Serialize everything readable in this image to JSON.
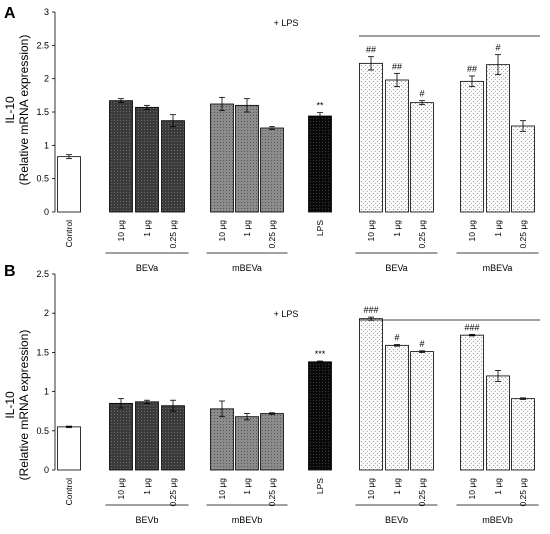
{
  "colors": {
    "white": "#ffffff",
    "dark": "#3a3a3a",
    "medium": "#8a8a8a",
    "black": "#111111",
    "dotted": "#f2f2f2"
  },
  "chart_data": [
    {
      "type": "bar",
      "panel": "A",
      "ylabel_line1": "IL-10",
      "ylabel_line2": "(Relative mRNA expression)",
      "ylim": [
        0,
        3
      ],
      "yticks": [
        "0",
        "0.5",
        "1",
        "1.5",
        "2",
        "2.5",
        "3"
      ],
      "lps_label": "+ LPS",
      "groups": [
        {
          "label": "BEVa",
          "start": 1,
          "end": 3
        },
        {
          "label": "mBEVa",
          "start": 4,
          "end": 6
        },
        {
          "label": "BEVa",
          "start": 8,
          "end": 10
        },
        {
          "label": "mBEVa",
          "start": 11,
          "end": 13
        }
      ],
      "bars": [
        {
          "category": "Control",
          "value": 0.83,
          "error": 0.03,
          "fill": "white",
          "sig": ""
        },
        {
          "category": "10 μg",
          "value": 1.67,
          "error": 0.03,
          "fill": "dark",
          "sig": ""
        },
        {
          "category": "1 μg",
          "value": 1.57,
          "error": 0.03,
          "fill": "dark",
          "sig": ""
        },
        {
          "category": "0.25 μg",
          "value": 1.37,
          "error": 0.09,
          "fill": "dark",
          "sig": ""
        },
        {
          "category": "10 μg",
          "value": 1.62,
          "error": 0.1,
          "fill": "medium",
          "sig": ""
        },
        {
          "category": "1 μg",
          "value": 1.6,
          "error": 0.1,
          "fill": "medium",
          "sig": ""
        },
        {
          "category": "0.25 μg",
          "value": 1.26,
          "error": 0.02,
          "fill": "medium",
          "sig": ""
        },
        {
          "category": "LPS",
          "value": 1.44,
          "error": 0.05,
          "fill": "black",
          "sig": "**"
        },
        {
          "category": "10 μg",
          "value": 2.23,
          "error": 0.1,
          "fill": "dotted",
          "sig": "##"
        },
        {
          "category": "1 μg",
          "value": 1.98,
          "error": 0.1,
          "fill": "dotted",
          "sig": "##"
        },
        {
          "category": "0.25 μg",
          "value": 1.64,
          "error": 0.03,
          "fill": "dotted",
          "sig": "#"
        },
        {
          "category": "10 μg",
          "value": 1.96,
          "error": 0.08,
          "fill": "dotted",
          "sig": "##"
        },
        {
          "category": "1 μg",
          "value": 2.21,
          "error": 0.15,
          "fill": "dotted",
          "sig": "#"
        },
        {
          "category": "0.25 μg",
          "value": 1.29,
          "error": 0.08,
          "fill": "dotted",
          "sig": ""
        }
      ]
    },
    {
      "type": "bar",
      "panel": "B",
      "ylabel_line1": "IL-10",
      "ylabel_line2": "(Relative mRNA expression)",
      "ylim": [
        0,
        2.5
      ],
      "yticks": [
        "0",
        "0.5",
        "1",
        "1.5",
        "2",
        "2.5"
      ],
      "lps_label": "+ LPS",
      "groups": [
        {
          "label": "BEVb",
          "start": 1,
          "end": 3
        },
        {
          "label": "mBEVb",
          "start": 4,
          "end": 6
        },
        {
          "label": "BEVb",
          "start": 8,
          "end": 10
        },
        {
          "label": "mBEVb",
          "start": 11,
          "end": 13
        }
      ],
      "bars": [
        {
          "category": "Control",
          "value": 0.55,
          "error": 0.01,
          "fill": "white",
          "sig": ""
        },
        {
          "category": "10 μg",
          "value": 0.85,
          "error": 0.06,
          "fill": "dark",
          "sig": ""
        },
        {
          "category": "1 μg",
          "value": 0.87,
          "error": 0.02,
          "fill": "dark",
          "sig": ""
        },
        {
          "category": "0.25 μg",
          "value": 0.82,
          "error": 0.07,
          "fill": "dark",
          "sig": ""
        },
        {
          "category": "10 μg",
          "value": 0.78,
          "error": 0.1,
          "fill": "medium",
          "sig": ""
        },
        {
          "category": "1 μg",
          "value": 0.68,
          "error": 0.04,
          "fill": "medium",
          "sig": ""
        },
        {
          "category": "0.25 μg",
          "value": 0.72,
          "error": 0.01,
          "fill": "medium",
          "sig": ""
        },
        {
          "category": "LPS",
          "value": 1.38,
          "error": 0.01,
          "fill": "black",
          "sig": "***"
        },
        {
          "category": "10 μg",
          "value": 1.93,
          "error": 0.02,
          "fill": "dotted",
          "sig": "###"
        },
        {
          "category": "1 μg",
          "value": 1.59,
          "error": 0.01,
          "fill": "dotted",
          "sig": "#"
        },
        {
          "category": "0.25 μg",
          "value": 1.51,
          "error": 0.01,
          "fill": "dotted",
          "sig": "#"
        },
        {
          "category": "10 μg",
          "value": 1.72,
          "error": 0.01,
          "fill": "dotted",
          "sig": "###"
        },
        {
          "category": "1 μg",
          "value": 1.2,
          "error": 0.07,
          "fill": "dotted",
          "sig": ""
        },
        {
          "category": "0.25 μg",
          "value": 0.91,
          "error": 0.01,
          "fill": "dotted",
          "sig": ""
        }
      ]
    }
  ]
}
